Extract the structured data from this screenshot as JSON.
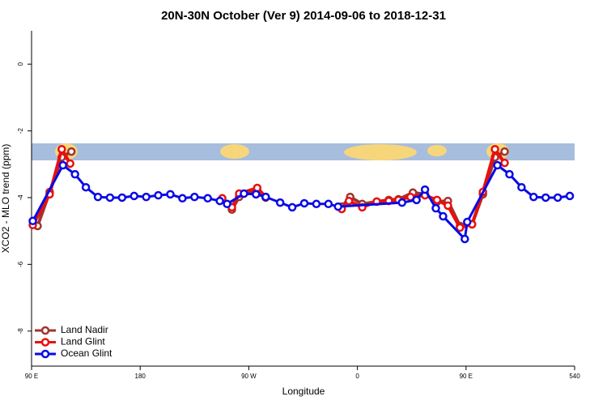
{
  "chart_data": {
    "type": "line",
    "title": "20N-30N October (Ver 9)   2014-09-06 to 2018-12-31",
    "x_label": "Longitude",
    "y_label": "XCO2 - MLO trend (ppm)",
    "xlim": [
      90,
      540
    ],
    "xticks": [
      {
        "value": 90,
        "label": "90 E"
      },
      180,
      {
        "value": 270,
        "label": "90 W"
      },
      {
        "value": 360,
        "label": "0"
      },
      {
        "value": 450,
        "label": "90 E"
      },
      540
    ],
    "ylim": [
      -9.05,
      1.0
    ],
    "yticks": [
      0,
      -2,
      -4,
      -6,
      -8
    ],
    "legend": "bottom-left",
    "series": [
      {
        "name": "Land Nadir",
        "color": "#a0342e",
        "x": [
          95,
          105,
          115,
          123,
          null,
          256,
          262,
          277,
          284,
          null,
          347,
          354,
          364,
          376,
          386,
          394,
          406,
          416,
          426,
          435,
          445,
          455,
          464,
          474,
          482
        ],
        "values": [
          -4.85,
          -3.83,
          -2.79,
          -2.62,
          null,
          -4.36,
          -3.98,
          -3.78,
          -4.0,
          null,
          -4.27,
          -3.98,
          -4.19,
          -4.12,
          -4.07,
          -4.05,
          -3.85,
          -3.9,
          -4.12,
          -4.1,
          -4.85,
          -4.8,
          -3.9,
          -2.79,
          -2.62
        ]
      },
      {
        "name": "Land Glint",
        "color": "#e8100e",
        "x": [
          91,
          105,
          115,
          122,
          null,
          248,
          256,
          262,
          277,
          284,
          null,
          347,
          353,
          364,
          376,
          386,
          394,
          404,
          416,
          426,
          435,
          445,
          455,
          464,
          474,
          482
        ],
        "values": [
          -4.82,
          -3.9,
          -2.55,
          -2.98,
          null,
          -4.02,
          -4.29,
          -3.88,
          -3.71,
          -3.98,
          null,
          -4.34,
          -4.1,
          -4.29,
          -4.12,
          -4.1,
          -4.07,
          -3.98,
          -3.93,
          -4.07,
          -4.24,
          -4.9,
          -4.8,
          -3.83,
          -2.55,
          -2.96
        ]
      },
      {
        "name": "Ocean Glint",
        "color": "#0a0ae6",
        "x": [
          91,
          116,
          126,
          135,
          145,
          155,
          165,
          175,
          185,
          195,
          205,
          215,
          225,
          236,
          246,
          252,
          266,
          276,
          284,
          296,
          306,
          316,
          326,
          336,
          344,
          397,
          409,
          416,
          425,
          431,
          449,
          451,
          476,
          486,
          496,
          506,
          516,
          526,
          536
        ],
        "values": [
          -4.7,
          -3.03,
          -3.3,
          -3.69,
          -3.98,
          -4.0,
          -4.0,
          -3.95,
          -3.98,
          -3.93,
          -3.9,
          -4.02,
          -3.98,
          -4.02,
          -4.1,
          -4.19,
          -3.88,
          -3.9,
          -3.98,
          -4.15,
          -4.29,
          -4.17,
          -4.19,
          -4.19,
          -4.27,
          -4.15,
          -4.07,
          -3.76,
          -4.32,
          -4.56,
          -5.24,
          -4.73,
          -3.03,
          -3.3,
          -3.69,
          -3.98,
          -4.0,
          -4.0,
          -3.95
        ]
      }
    ]
  }
}
